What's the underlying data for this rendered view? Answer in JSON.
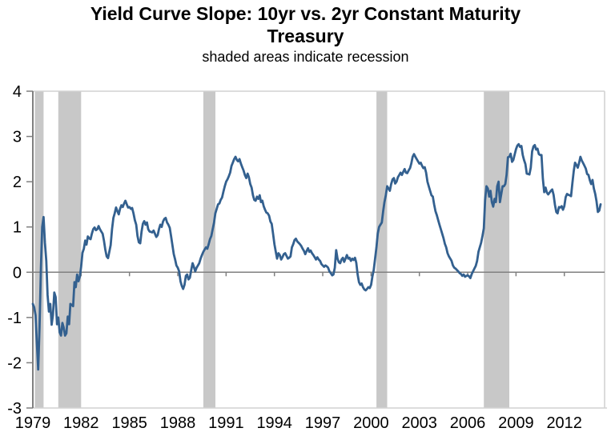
{
  "title": {
    "line1": "Yield Curve Slope: 10yr vs. 2yr Constant Maturity",
    "line2": "Treasury",
    "subtitle": "shaded areas indicate recession"
  },
  "chart_data": {
    "type": "line",
    "title": "Yield Curve Slope: 10yr vs. 2yr Constant Maturity Treasury",
    "subtitle": "shaded areas indicate recession",
    "xlabel": "",
    "ylabel": "",
    "x_axis": {
      "domain_decimal_years": [
        1979.917,
        2015.417
      ],
      "tick_label_years": [
        1979,
        1982,
        1985,
        1988,
        1991,
        1994,
        1997,
        2000,
        2003,
        2006,
        2009,
        2012
      ],
      "tick_labels": [
        "1979",
        "1982",
        "1985",
        "1988",
        "1991",
        "1994",
        "1997",
        "2000",
        "2003",
        "2006",
        "2009",
        "2012"
      ],
      "tick_month_offset": 0.917,
      "grid": false
    },
    "y_axis": {
      "domain": [
        -3,
        4
      ],
      "ticks": [
        -3,
        -2,
        -1,
        0,
        1,
        2,
        3,
        4
      ],
      "tick_labels": [
        "-3",
        "-2",
        "-1",
        "0",
        "1",
        "2",
        "3",
        "4"
      ],
      "grid": false,
      "zero_line": true
    },
    "recessions": [
      {
        "start": 1980.042,
        "end": 1980.583
      },
      {
        "start": 1981.5,
        "end": 1982.917
      },
      {
        "start": 1990.5,
        "end": 1991.25
      },
      {
        "start": 2001.25,
        "end": 2001.917
      },
      {
        "start": 2007.917,
        "end": 2009.5
      }
    ],
    "series": [
      {
        "name": "10yr minus 2yr constant maturity Treasury spread (percentage points)",
        "start_decimal_year": 1979.917,
        "points_per_year": 12,
        "values": [
          -0.7,
          -0.78,
          -0.95,
          -1.55,
          -2.15,
          -1.2,
          0.1,
          1.0,
          1.22,
          0.65,
          0.25,
          -0.5,
          -0.87,
          -0.7,
          -1.16,
          -0.95,
          -0.45,
          -0.55,
          -1.15,
          -1.0,
          -1.33,
          -1.4,
          -1.12,
          -1.22,
          -1.4,
          -1.35,
          -0.98,
          -1.15,
          -0.7,
          -0.72,
          -0.75,
          -0.22,
          -0.33,
          -0.05,
          -0.2,
          -0.1,
          0.12,
          0.43,
          0.52,
          0.7,
          0.61,
          0.79,
          0.75,
          0.73,
          0.85,
          0.95,
          0.99,
          0.93,
          0.95,
          1.02,
          0.95,
          0.9,
          0.85,
          0.7,
          0.5,
          0.35,
          0.31,
          0.45,
          0.6,
          0.95,
          1.2,
          1.3,
          1.43,
          1.35,
          1.28,
          1.4,
          1.48,
          1.44,
          1.52,
          1.58,
          1.5,
          1.43,
          1.44,
          1.4,
          1.42,
          1.3,
          1.15,
          1.05,
          0.8,
          0.66,
          0.64,
          0.9,
          1.07,
          1.13,
          1.05,
          1.1,
          0.95,
          0.9,
          0.89,
          0.88,
          0.92,
          0.85,
          0.78,
          0.82,
          0.95,
          1.05,
          1.0,
          1.12,
          1.18,
          1.2,
          1.1,
          1.05,
          0.98,
          0.8,
          0.6,
          0.4,
          0.28,
          0.15,
          0.1,
          0.02,
          -0.2,
          -0.3,
          -0.37,
          -0.28,
          -0.08,
          -0.05,
          -0.16,
          -0.12,
          0.05,
          0.2,
          0.12,
          0.02,
          0.1,
          0.15,
          0.2,
          0.3,
          0.38,
          0.45,
          0.5,
          0.55,
          0.52,
          0.62,
          0.73,
          0.8,
          0.95,
          1.1,
          1.3,
          1.4,
          1.5,
          1.52,
          1.6,
          1.65,
          1.78,
          1.9,
          2.0,
          2.05,
          2.12,
          2.2,
          2.35,
          2.42,
          2.5,
          2.55,
          2.48,
          2.45,
          2.5,
          2.4,
          2.32,
          2.25,
          2.15,
          2.08,
          2.18,
          2.1,
          1.95,
          1.87,
          1.7,
          1.6,
          1.58,
          1.67,
          1.62,
          1.7,
          1.55,
          1.58,
          1.46,
          1.38,
          1.32,
          1.3,
          1.25,
          1.12,
          1.07,
          0.85,
          0.62,
          0.45,
          0.3,
          0.42,
          0.38,
          0.28,
          0.33,
          0.4,
          0.42,
          0.36,
          0.3,
          0.32,
          0.35,
          0.55,
          0.62,
          0.71,
          0.74,
          0.68,
          0.65,
          0.62,
          0.58,
          0.52,
          0.47,
          0.4,
          0.47,
          0.53,
          0.45,
          0.48,
          0.42,
          0.38,
          0.33,
          0.28,
          0.33,
          0.28,
          0.25,
          0.18,
          0.15,
          0.12,
          0.15,
          0.13,
          0.1,
          0.02,
          -0.02,
          -0.07,
          -0.05,
          0.1,
          0.49,
          0.3,
          0.22,
          0.2,
          0.28,
          0.32,
          0.23,
          0.3,
          0.38,
          0.3,
          0.32,
          0.25,
          0.3,
          0.27,
          0.32,
          0.21,
          -0.05,
          -0.22,
          -0.28,
          -0.25,
          -0.33,
          -0.38,
          -0.4,
          -0.37,
          -0.33,
          -0.35,
          -0.28,
          -0.1,
          0.05,
          0.3,
          0.55,
          0.85,
          1.0,
          1.05,
          1.1,
          1.35,
          1.55,
          1.7,
          1.9,
          1.85,
          1.8,
          1.95,
          2.05,
          2.08,
          1.96,
          2.0,
          2.1,
          2.15,
          2.2,
          2.15,
          2.22,
          2.28,
          2.2,
          2.19,
          2.25,
          2.3,
          2.4,
          2.55,
          2.61,
          2.55,
          2.5,
          2.45,
          2.4,
          2.42,
          2.35,
          2.3,
          2.32,
          2.2,
          2.0,
          1.9,
          1.8,
          1.7,
          1.67,
          1.5,
          1.35,
          1.26,
          1.15,
          1.05,
          0.95,
          0.85,
          0.75,
          0.63,
          0.55,
          0.42,
          0.35,
          0.3,
          0.25,
          0.15,
          0.1,
          0.08,
          0.05,
          0.02,
          -0.02,
          -0.04,
          -0.08,
          -0.05,
          -0.1,
          -0.08,
          -0.07,
          -0.09,
          -0.13,
          -0.04,
          0.02,
          0.08,
          0.14,
          0.25,
          0.45,
          0.55,
          0.65,
          0.8,
          0.97,
          1.6,
          1.9,
          1.85,
          1.67,
          1.8,
          1.55,
          1.45,
          1.62,
          1.55,
          1.9,
          2.0,
          1.55,
          1.72,
          1.9,
          1.9,
          1.95,
          2.15,
          2.54,
          2.55,
          2.62,
          2.44,
          2.48,
          2.6,
          2.72,
          2.8,
          2.83,
          2.77,
          2.79,
          2.59,
          2.48,
          2.39,
          2.18,
          2.17,
          2.16,
          2.31,
          2.67,
          2.78,
          2.81,
          2.71,
          2.73,
          2.61,
          2.59,
          2.59,
          2.07,
          1.77,
          1.87,
          1.76,
          1.72,
          1.76,
          1.8,
          1.83,
          1.71,
          1.49,
          1.33,
          1.3,
          1.44,
          1.43,
          1.46,
          1.38,
          1.46,
          1.66,
          1.73,
          1.71,
          1.7,
          1.68,
          1.97,
          2.24,
          2.42,
          2.37,
          2.31,
          2.42,
          2.55,
          2.47,
          2.41,
          2.35,
          2.29,
          2.17,
          2.15,
          2.03,
          1.95,
          2.04,
          1.85,
          1.73,
          1.57,
          1.33,
          1.36,
          1.5
        ]
      }
    ],
    "colors": {
      "line": "#33608f",
      "recession_band": "#c8c8c8",
      "zero_axis": "#7f7f7f",
      "y_axis": "#7f7f7f",
      "plot_border": "#d2d2d2",
      "text": "#000000"
    },
    "legend": null
  }
}
